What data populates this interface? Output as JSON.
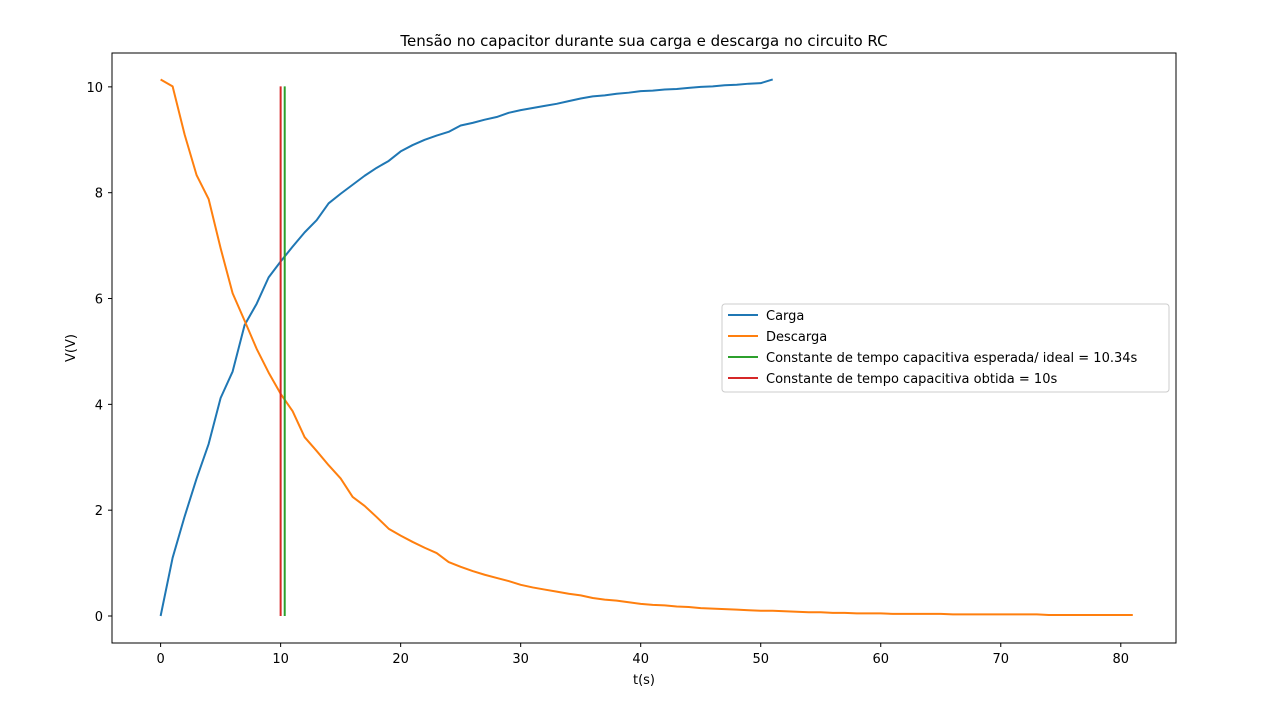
{
  "chart_data": {
    "type": "line",
    "title": "Tensão no capacitor durante sua carga e descarga no circuito RC",
    "xlabel": "t(s)",
    "ylabel": "V(V)",
    "xlim": [
      -4.05,
      84.6
    ],
    "ylim": [
      -0.51,
      10.64
    ],
    "xticks": [
      0,
      10,
      20,
      30,
      40,
      50,
      60,
      70,
      80
    ],
    "yticks": [
      0,
      2,
      4,
      6,
      8,
      10
    ],
    "grid": false,
    "legend_position": "center-right",
    "series": [
      {
        "name": "Carga",
        "color": "#1f77b4",
        "x": [
          0,
          1,
          2,
          3,
          4,
          5,
          6,
          7,
          8,
          9,
          10,
          11,
          12,
          13,
          14,
          15,
          16,
          17,
          18,
          19,
          20,
          21,
          22,
          23,
          24,
          25,
          26,
          27,
          28,
          29,
          30,
          31,
          32,
          33,
          34,
          35,
          36,
          37,
          38,
          39,
          40,
          41,
          42,
          43,
          44,
          45,
          46,
          47,
          48,
          49,
          50,
          51
        ],
        "y": [
          0,
          1.1,
          1.88,
          2.6,
          3.25,
          4.12,
          4.62,
          5.5,
          5.9,
          6.4,
          6.7,
          6.98,
          7.25,
          7.48,
          7.8,
          7.98,
          8.15,
          8.32,
          8.47,
          8.6,
          8.78,
          8.9,
          9.0,
          9.08,
          9.15,
          9.27,
          9.32,
          9.38,
          9.43,
          9.51,
          9.56,
          9.6,
          9.64,
          9.68,
          9.73,
          9.78,
          9.82,
          9.84,
          9.87,
          9.89,
          9.92,
          9.93,
          9.95,
          9.96,
          9.98,
          10.0,
          10.01,
          10.03,
          10.04,
          10.06,
          10.07,
          10.14
        ]
      },
      {
        "name": "Descarga",
        "color": "#ff7f0e",
        "x": [
          0,
          1,
          2,
          3,
          4,
          5,
          6,
          7,
          8,
          9,
          10,
          11,
          12,
          13,
          14,
          15,
          16,
          17,
          18,
          19,
          20,
          21,
          22,
          23,
          24,
          25,
          26,
          27,
          28,
          29,
          30,
          31,
          32,
          33,
          34,
          35,
          36,
          37,
          38,
          39,
          40,
          41,
          42,
          43,
          44,
          45,
          46,
          47,
          48,
          49,
          50,
          51,
          52,
          53,
          54,
          55,
          56,
          57,
          58,
          59,
          60,
          61,
          62,
          63,
          64,
          65,
          66,
          67,
          68,
          69,
          70,
          71,
          72,
          73,
          74,
          75,
          76,
          77,
          78,
          79,
          80,
          81
        ],
        "y": [
          10.14,
          10.01,
          9.1,
          8.33,
          7.88,
          6.95,
          6.1,
          5.58,
          5.05,
          4.6,
          4.2,
          3.87,
          3.38,
          3.12,
          2.85,
          2.6,
          2.25,
          2.08,
          1.87,
          1.65,
          1.52,
          1.4,
          1.29,
          1.19,
          1.02,
          0.93,
          0.85,
          0.78,
          0.72,
          0.66,
          0.59,
          0.54,
          0.5,
          0.46,
          0.42,
          0.39,
          0.34,
          0.31,
          0.29,
          0.26,
          0.23,
          0.21,
          0.2,
          0.18,
          0.17,
          0.15,
          0.14,
          0.13,
          0.12,
          0.11,
          0.1,
          0.1,
          0.09,
          0.08,
          0.07,
          0.07,
          0.06,
          0.06,
          0.05,
          0.05,
          0.05,
          0.04,
          0.04,
          0.04,
          0.04,
          0.04,
          0.03,
          0.03,
          0.03,
          0.03,
          0.03,
          0.03,
          0.03,
          0.03,
          0.02,
          0.02,
          0.02,
          0.02,
          0.02,
          0.02,
          0.02,
          0.02
        ]
      }
    ],
    "vlines": [
      {
        "name": "Constante de tempo capacitiva esperada/ ideal = 10.34s",
        "color": "#2ca02c",
        "x": 10.34,
        "ymin": 0,
        "ymax": 10.01
      },
      {
        "name": "Constante de tempo capacitiva obtida = 10s",
        "color": "#d62728",
        "x": 10,
        "ymin": 0,
        "ymax": 10.01
      }
    ]
  }
}
